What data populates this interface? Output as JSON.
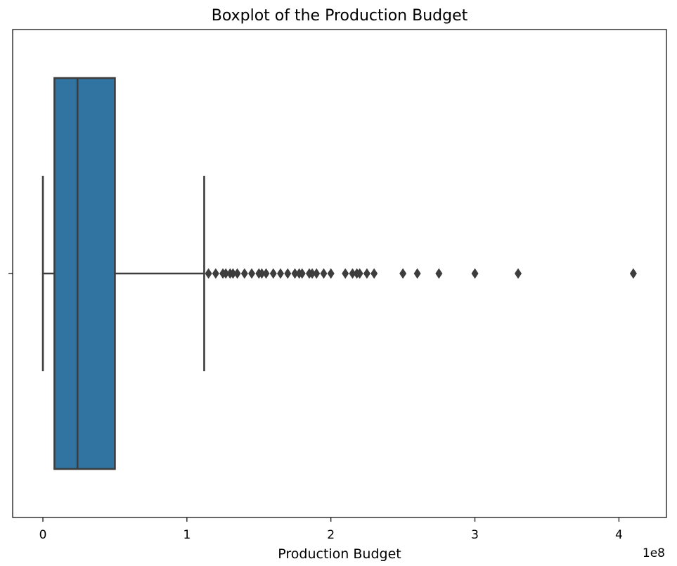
{
  "chart_data": {
    "type": "boxplot",
    "title": "Boxplot of the Production Budget",
    "xlabel": "Production Budget",
    "ylabel": "",
    "offset_label": "1e8",
    "xlim": [
      -0.21,
      4.33
    ],
    "x_ticks": [
      0,
      1,
      2,
      3,
      4
    ],
    "x_tick_labels": [
      "0",
      "1",
      "2",
      "3",
      "4"
    ],
    "grid": false,
    "legend": "none",
    "colors": {
      "box_fill": "#3274a1",
      "lines": "#3d3d3d",
      "outliers": "#3d3d3d"
    },
    "box": {
      "whisker_low": 0.0,
      "q1": 0.08,
      "median": 0.24,
      "q3": 0.5,
      "whisker_high": 1.12
    },
    "outliers": [
      1.15,
      1.2,
      1.25,
      1.27,
      1.3,
      1.32,
      1.35,
      1.4,
      1.45,
      1.5,
      1.52,
      1.55,
      1.6,
      1.65,
      1.7,
      1.75,
      1.78,
      1.8,
      1.85,
      1.87,
      1.9,
      1.95,
      2.0,
      2.1,
      2.15,
      2.18,
      2.2,
      2.25,
      2.3,
      2.5,
      2.6,
      2.75,
      3.0,
      3.3,
      4.1
    ]
  }
}
